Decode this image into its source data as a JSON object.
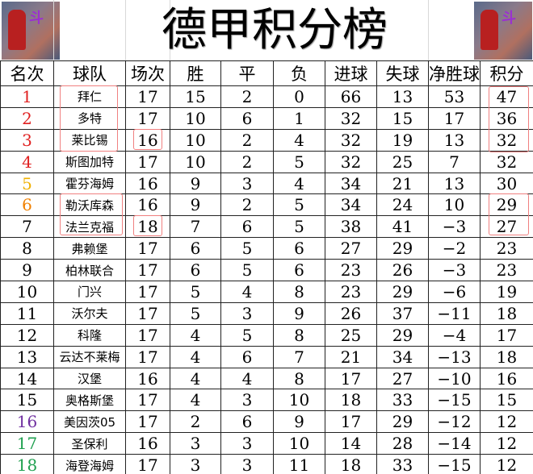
{
  "title": "德甲积分榜",
  "headers": [
    "名次",
    "球队",
    "场次",
    "胜",
    "平",
    "负",
    "进球",
    "失球",
    "净胜球",
    "积分"
  ],
  "rank_colors": {
    "1": "#e02020",
    "2": "#e02020",
    "3": "#e02020",
    "4": "#e02020",
    "5": "#f0b000",
    "6": "#f08000",
    "16": "#7030a0",
    "17": "#20a050",
    "18": "#20a050"
  },
  "rows": [
    [
      "1",
      "拜仁",
      "17",
      "15",
      "2",
      "0",
      "66",
      "13",
      "53",
      "47"
    ],
    [
      "2",
      "多特",
      "17",
      "10",
      "6",
      "1",
      "32",
      "15",
      "17",
      "36"
    ],
    [
      "3",
      "莱比锡",
      "16",
      "10",
      "2",
      "4",
      "32",
      "19",
      "13",
      "32"
    ],
    [
      "4",
      "斯图加特",
      "17",
      "10",
      "2",
      "5",
      "32",
      "25",
      "7",
      "32"
    ],
    [
      "5",
      "霍芬海姆",
      "16",
      "9",
      "3",
      "4",
      "34",
      "21",
      "13",
      "30"
    ],
    [
      "6",
      "勒沃库森",
      "16",
      "9",
      "2",
      "5",
      "34",
      "24",
      "10",
      "29"
    ],
    [
      "7",
      "法兰克福",
      "18",
      "7",
      "6",
      "5",
      "38",
      "41",
      "−3",
      "27"
    ],
    [
      "8",
      "弗赖堡",
      "17",
      "6",
      "5",
      "6",
      "27",
      "29",
      "−2",
      "23"
    ],
    [
      "9",
      "柏林联合",
      "17",
      "6",
      "5",
      "6",
      "23",
      "26",
      "−3",
      "23"
    ],
    [
      "10",
      "门兴",
      "17",
      "5",
      "4",
      "8",
      "23",
      "29",
      "−6",
      "19"
    ],
    [
      "11",
      "沃尔夫",
      "17",
      "5",
      "3",
      "9",
      "26",
      "37",
      "−11",
      "18"
    ],
    [
      "12",
      "科隆",
      "17",
      "4",
      "5",
      "8",
      "25",
      "29",
      "−4",
      "17"
    ],
    [
      "13",
      "云达不莱梅",
      "17",
      "4",
      "6",
      "7",
      "21",
      "34",
      "−13",
      "18"
    ],
    [
      "14",
      "汉堡",
      "16",
      "4",
      "4",
      "8",
      "17",
      "27",
      "−10",
      "16"
    ],
    [
      "15",
      "奥格斯堡",
      "17",
      "4",
      "3",
      "10",
      "18",
      "33",
      "−15",
      "15"
    ],
    [
      "16",
      "美因茨05",
      "17",
      "2",
      "6",
      "9",
      "17",
      "29",
      "−12",
      "12"
    ],
    [
      "17",
      "圣保利",
      "16",
      "3",
      "3",
      "10",
      "14",
      "28",
      "−14",
      "12"
    ],
    [
      "18",
      "海登海姆",
      "17",
      "3",
      "3",
      "11",
      "18",
      "33",
      "−15",
      "12"
    ]
  ]
}
